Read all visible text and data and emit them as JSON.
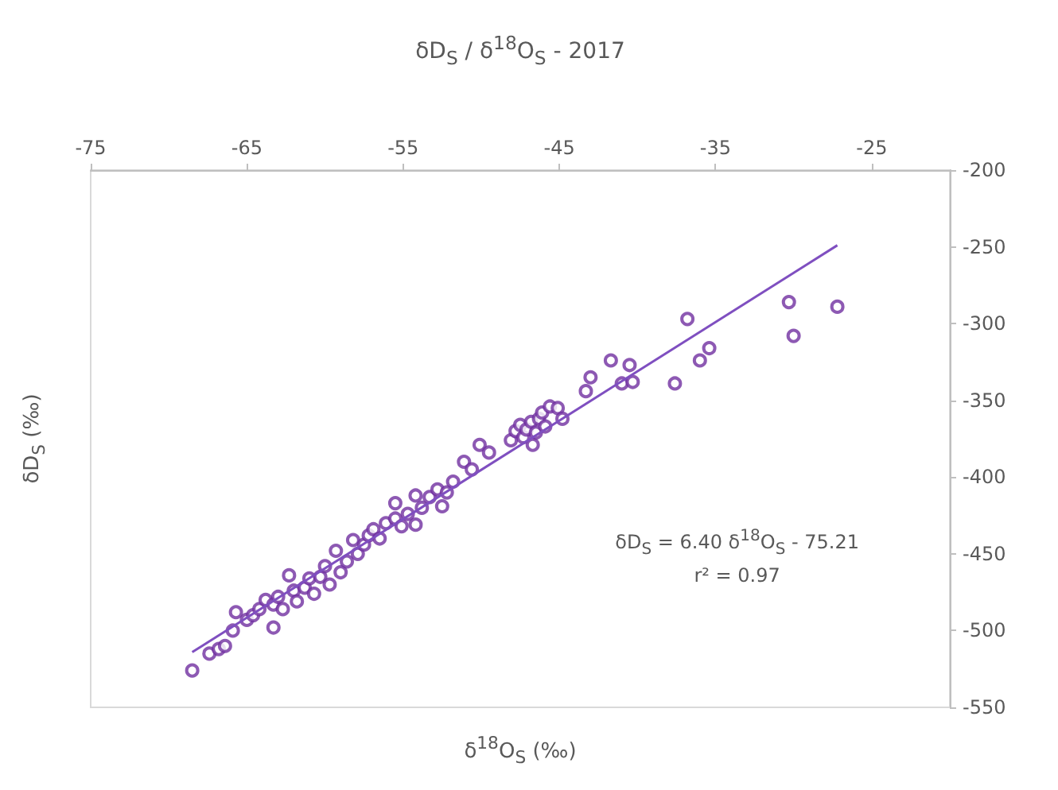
{
  "chart_data": {
    "type": "scatter",
    "title": "δD$_{S}$ / δ$^{18}$O$_{S}$ - 2017",
    "xlabel": "δ$^{18}$O$_{S}$ (‰)",
    "ylabel": "δD$_{S}$ (‰)",
    "annotations": [
      "δD$_{S}$ = 6.40 δ$^{18}$O$_{S}$  - 75.21",
      "r² = 0.97"
    ],
    "xlim": [
      -75,
      -20
    ],
    "xticks": [
      -75,
      -65,
      -55,
      -45,
      -35,
      -25
    ],
    "ylim": [
      -550,
      -200
    ],
    "yticks": [
      -550,
      -500,
      -450,
      -400,
      -350,
      -300,
      -250,
      -200
    ],
    "series": [
      {
        "color": "#7030a0",
        "marker": "circle",
        "x": [
          -68.5,
          -67.4,
          -66.8,
          -66.4,
          -65.9,
          -65.7,
          -65.0,
          -64.6,
          -64.2,
          -63.8,
          -63.3,
          -63.3,
          -63.0,
          -62.7,
          -62.3,
          -62.0,
          -61.8,
          -61.3,
          -61.0,
          -60.7,
          -60.3,
          -60.0,
          -59.7,
          -59.3,
          -59.0,
          -58.6,
          -58.2,
          -57.9,
          -57.5,
          -57.2,
          -56.9,
          -56.5,
          -56.1,
          -55.5,
          -55.5,
          -55.1,
          -54.7,
          -54.2,
          -54.2,
          -53.8,
          -53.3,
          -52.8,
          -52.5,
          -52.2,
          -51.8,
          -51.1,
          -50.6,
          -50.1,
          -49.5,
          -48.1,
          -47.8,
          -47.5,
          -47.3,
          -47.1,
          -46.8,
          -46.7,
          -46.5,
          -46.3,
          -46.1,
          -45.9,
          -45.6,
          -45.1,
          -44.8,
          -43.3,
          -43.0,
          -41.7,
          -41.0,
          -40.5,
          -40.3,
          -37.6,
          -36.8,
          -36.0,
          -35.4,
          -30.3,
          -30.0,
          -27.2
        ],
        "values": [
          -526,
          -515,
          -512,
          -510,
          -500,
          -488,
          -493,
          -490,
          -486,
          -480,
          -483,
          -498,
          -478,
          -486,
          -464,
          -474,
          -481,
          -472,
          -466,
          -476,
          -465,
          -458,
          -470,
          -448,
          -462,
          -455,
          -441,
          -450,
          -444,
          -438,
          -434,
          -440,
          -430,
          -417,
          -427,
          -432,
          -424,
          -431,
          -412,
          -420,
          -413,
          -408,
          -419,
          -410,
          -403,
          -390,
          -395,
          -379,
          -384,
          -376,
          -370,
          -366,
          -374,
          -369,
          -364,
          -379,
          -371,
          -362,
          -358,
          -367,
          -354,
          -355,
          -362,
          -344,
          -335,
          -324,
          -339,
          -327,
          -338,
          -339,
          -297,
          -324,
          -316,
          -286,
          -308,
          -289
        ]
      },
      {
        "type": "line",
        "color": "#7f4fc0",
        "marker": "none",
        "line_style": "solid",
        "x": [
          -68.5,
          -27.2
        ],
        "values": [
          -514,
          -249
        ]
      }
    ]
  }
}
